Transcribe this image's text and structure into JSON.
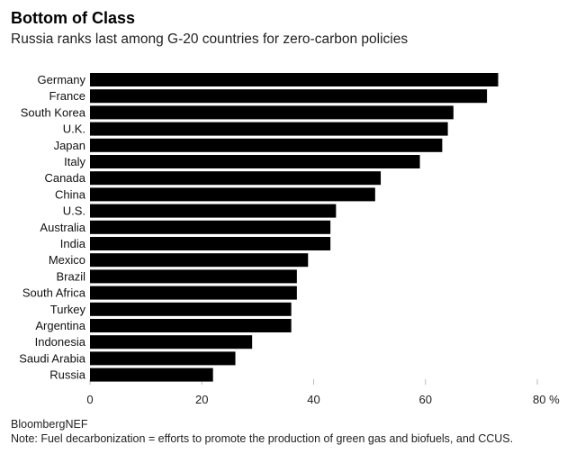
{
  "title": "Bottom of Class",
  "subtitle": "Russia ranks last among G-20 countries for zero-carbon policies",
  "source": "BloombergNEF",
  "note": "Note: Fuel decarbonization = efforts to promote the production of green gas and biofuels, and CCUS.",
  "chart_data": {
    "type": "bar",
    "orientation": "horizontal",
    "categories": [
      "Germany",
      "France",
      "South Korea",
      "U.K.",
      "Japan",
      "Italy",
      "Canada",
      "China",
      "U.S.",
      "Australia",
      "India",
      "Mexico",
      "Brazil",
      "South Africa",
      "Turkey",
      "Argentina",
      "Indonesia",
      "Saudi Arabia",
      "Russia"
    ],
    "values": [
      73,
      71,
      65,
      64,
      63,
      59,
      52,
      51,
      44,
      43,
      43,
      39,
      37,
      37,
      36,
      36,
      29,
      26,
      22
    ],
    "xlim": [
      0,
      80
    ],
    "xticks": [
      0,
      20,
      40,
      60,
      80
    ],
    "xtick_labels": [
      "0",
      "20",
      "40",
      "60",
      "80 %"
    ],
    "bar_color": "#000000",
    "grid": false
  }
}
